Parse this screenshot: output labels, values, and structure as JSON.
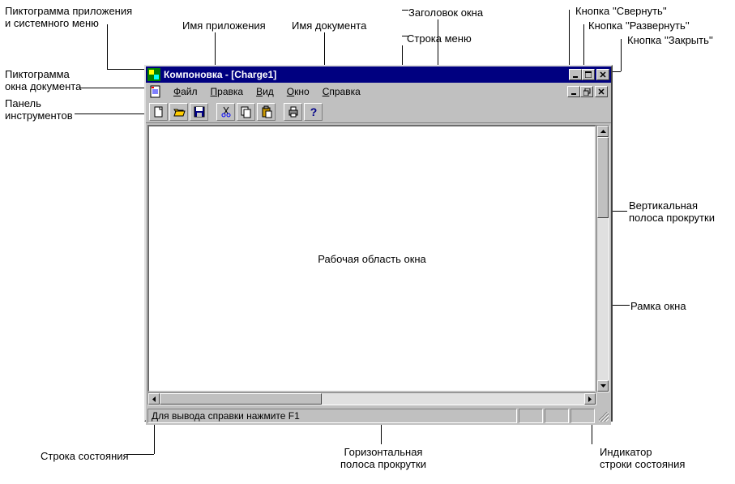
{
  "annotations": {
    "app_icon": "Пиктограмма приложения\nи системного меню",
    "app_name": "Имя приложения",
    "doc_name": "Имя документа",
    "title": "Заголовок окна",
    "menu_row": "Строка меню",
    "minimize": "Кнопка ''Свернуть''",
    "maximize": "Кнопка ''Развернуть''",
    "close": "Кнопка ''Закрыть''",
    "doc_icon": "Пиктограмма\nокна документа",
    "toolbar": "Панель\nинструментов",
    "vscroll": "Вертикальная\nполоса прокрутки",
    "frame": "Рамка окна",
    "hscroll": "Горизонтальная\nполоса прокрутки",
    "status": "Строка состояния",
    "status_ind": "Индикатор\nстроки состояния"
  },
  "window": {
    "app_name": "Компоновка",
    "doc_title": "[Charge1]",
    "title_sep": " - ",
    "colors": {
      "titlebar_bg": "#000080",
      "titlebar_fg": "#ffffff",
      "chrome": "#c0c0c0",
      "workarea_bg": "#ffffff"
    }
  },
  "menu": {
    "items": [
      {
        "label": "Файл",
        "accel": 0
      },
      {
        "label": "Правка",
        "accel": 0
      },
      {
        "label": "Вид",
        "accel": 0
      },
      {
        "label": "Окно",
        "accel": 0
      },
      {
        "label": "Справка",
        "accel": 0
      }
    ]
  },
  "toolbar": {
    "buttons": [
      {
        "name": "new-icon"
      },
      {
        "name": "open-icon"
      },
      {
        "name": "save-icon"
      },
      {
        "sep": true
      },
      {
        "name": "cut-icon"
      },
      {
        "name": "copy-icon"
      },
      {
        "name": "paste-icon"
      },
      {
        "sep": true
      },
      {
        "name": "print-icon"
      },
      {
        "name": "help-icon"
      }
    ]
  },
  "workarea": {
    "text": "Рабочая область окна"
  },
  "statusbar": {
    "text": "Для вывода справки нажмите F1"
  }
}
